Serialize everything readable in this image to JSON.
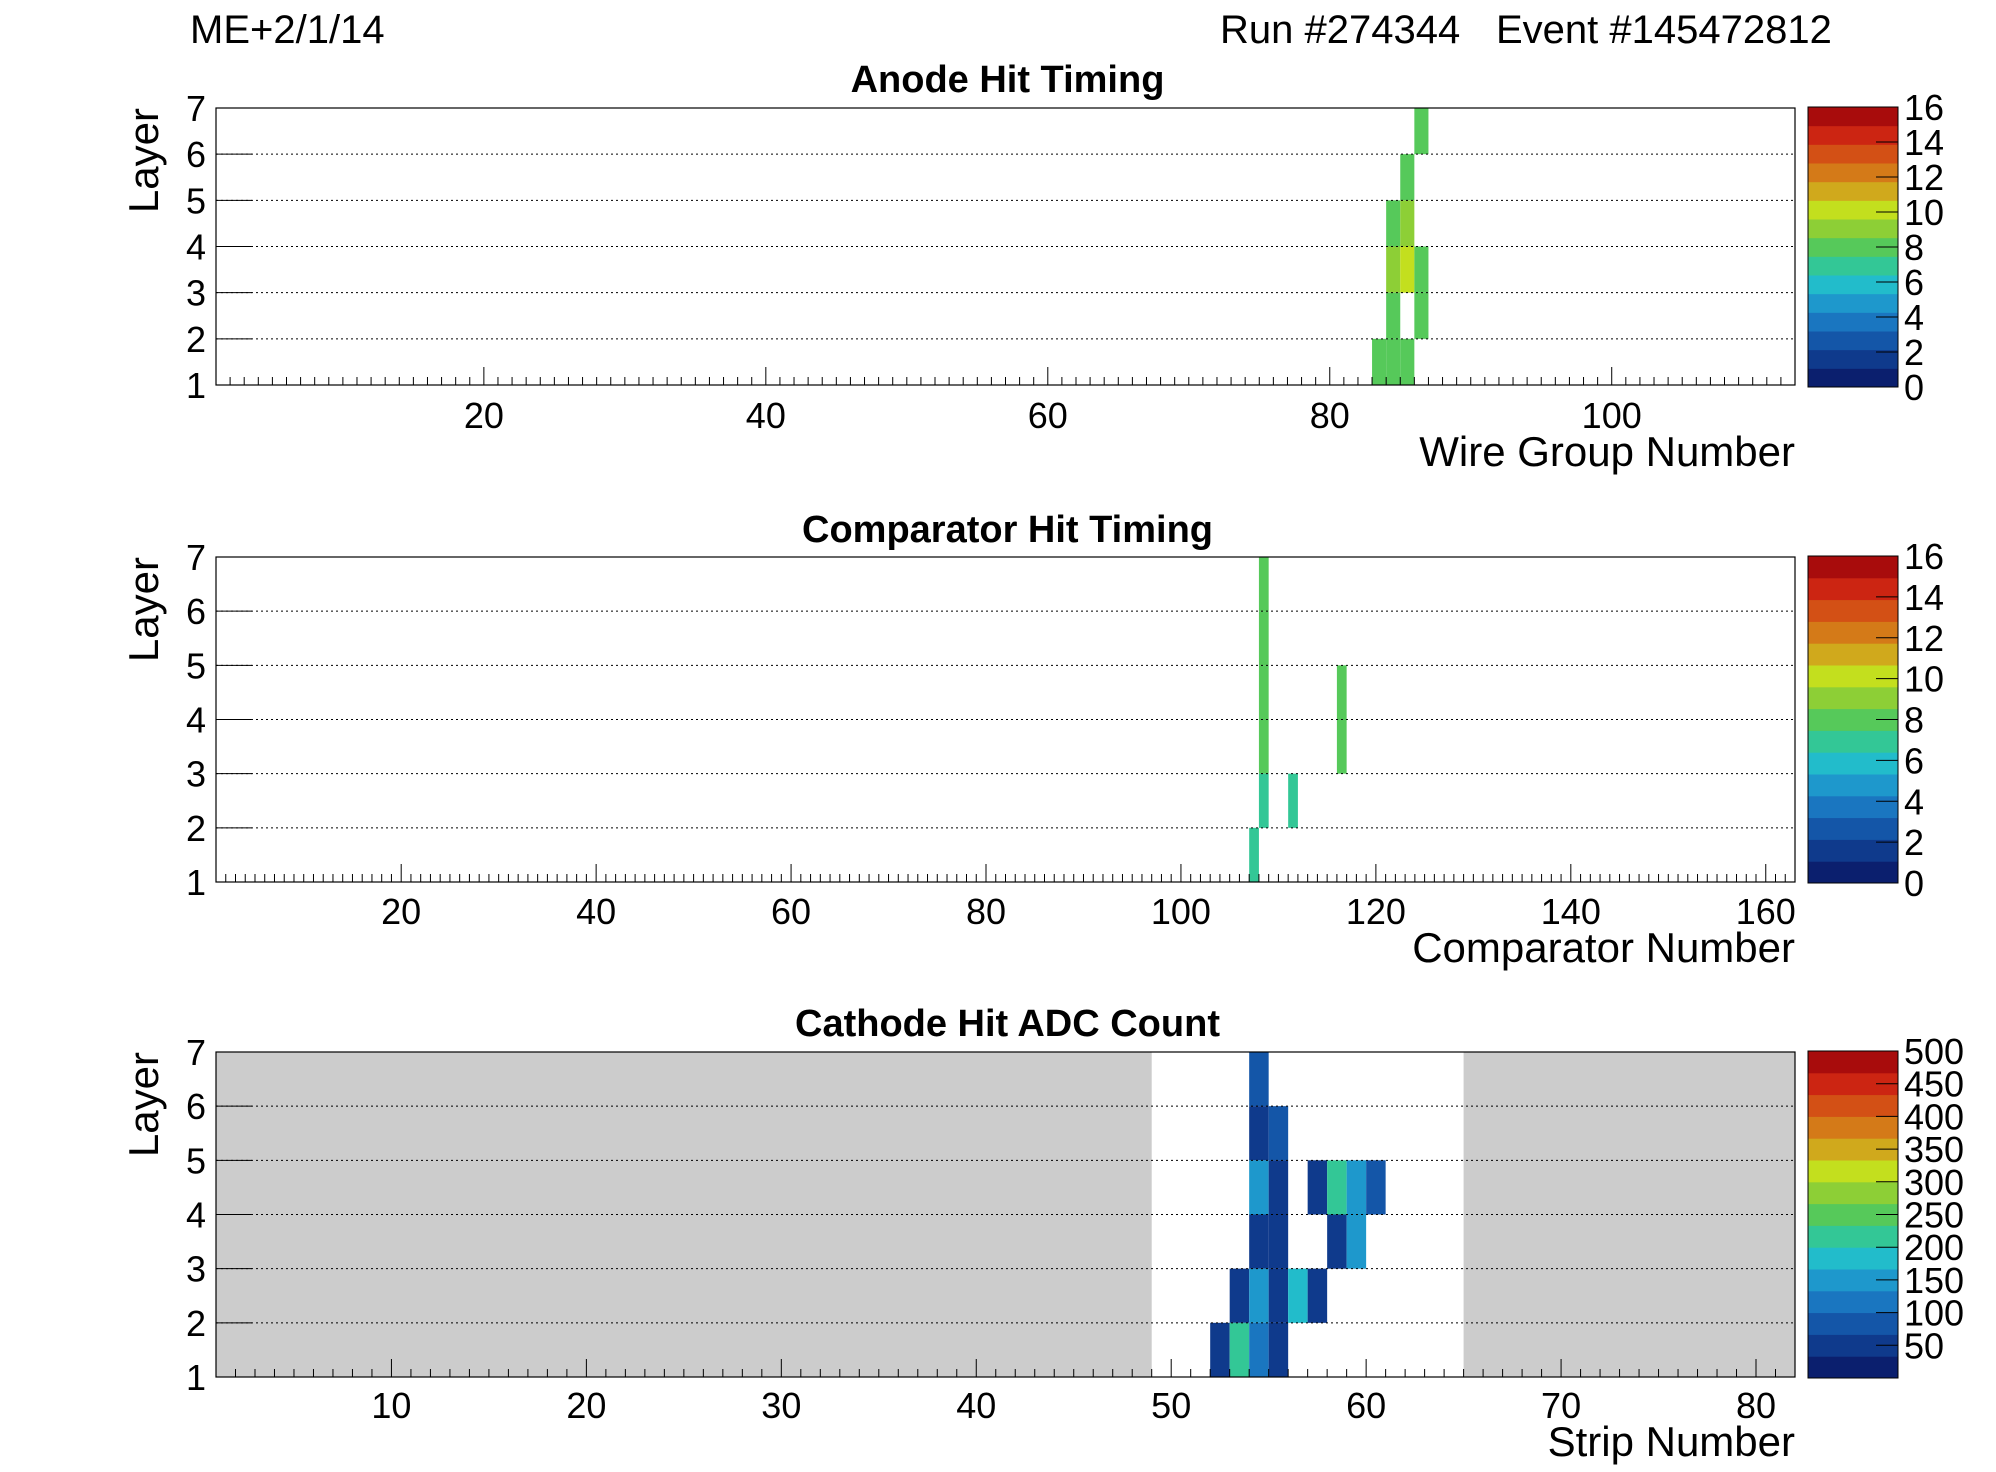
{
  "header": {
    "chamber": "ME+2/1/14",
    "run": "Run #274344",
    "event": "Event #145472812"
  },
  "colors": {
    "undefined_fill": "#cccccc",
    "plot_bg": "#ffffff",
    "palette": [
      "#0b1f6e",
      "#0f3a8c",
      "#1456a8",
      "#1a76c0",
      "#1e98cc",
      "#22bccb",
      "#33c796",
      "#56c95a",
      "#8dcf36",
      "#c3df1e",
      "#d0a91c",
      "#d47a18",
      "#d35015",
      "#cc2512",
      "#a80c0c"
    ]
  },
  "chart_data": [
    {
      "id": "anode",
      "type": "heatmap",
      "title": "Anode Hit Timing",
      "xlabel": "Wire Group Number",
      "ylabel": "Layer",
      "xlim": [
        1,
        113
      ],
      "ylim": [
        1,
        7
      ],
      "xticks": [
        20,
        40,
        60,
        80,
        100
      ],
      "yticks": [
        1,
        2,
        3,
        4,
        5,
        6,
        7
      ],
      "zlim": [
        0,
        16
      ],
      "zticks": [
        0,
        2,
        4,
        6,
        8,
        10,
        12,
        14,
        16
      ],
      "cells": [
        {
          "x": 86,
          "layer": 6,
          "value": 8.5
        },
        {
          "x": 85,
          "layer": 5,
          "value": 8.5
        },
        {
          "x": 84,
          "layer": 4,
          "value": 8.5
        },
        {
          "x": 85,
          "layer": 4,
          "value": 9.5
        },
        {
          "x": 84,
          "layer": 3,
          "value": 9.5
        },
        {
          "x": 85,
          "layer": 3,
          "value": 10.5
        },
        {
          "x": 86,
          "layer": 3,
          "value": 8.5
        },
        {
          "x": 84,
          "layer": 2,
          "value": 8.5
        },
        {
          "x": 86,
          "layer": 2,
          "value": 7.5
        },
        {
          "x": 83,
          "layer": 1,
          "value": 8.5
        },
        {
          "x": 84,
          "layer": 1,
          "value": 8.5
        },
        {
          "x": 85,
          "layer": 1,
          "value": 8.5
        }
      ],
      "defined_ranges": []
    },
    {
      "id": "comparator",
      "type": "heatmap",
      "title": "Comparator Hit Timing",
      "xlabel": "Comparator Number",
      "ylabel": "Layer",
      "xlim": [
        1,
        163
      ],
      "ylim": [
        1,
        7
      ],
      "xticks": [
        20,
        40,
        60,
        80,
        100,
        120,
        140,
        160
      ],
      "yticks": [
        1,
        2,
        3,
        4,
        5,
        6,
        7
      ],
      "zlim": [
        0,
        16
      ],
      "zticks": [
        0,
        2,
        4,
        6,
        8,
        10,
        12,
        14,
        16
      ],
      "cells": [
        {
          "x": 108,
          "layer": 6,
          "value": 8.5
        },
        {
          "x": 108,
          "layer": 5,
          "value": 8.5
        },
        {
          "x": 108,
          "layer": 4,
          "value": 7.5
        },
        {
          "x": 116,
          "layer": 4,
          "value": 7.5
        },
        {
          "x": 108,
          "layer": 3,
          "value": 8.5
        },
        {
          "x": 116,
          "layer": 3,
          "value": 7.5
        },
        {
          "x": 108,
          "layer": 2,
          "value": 6.5
        },
        {
          "x": 111,
          "layer": 2,
          "value": 6.5
        },
        {
          "x": 107,
          "layer": 1,
          "value": 6.5
        }
      ],
      "defined_ranges": []
    },
    {
      "id": "cathode",
      "type": "heatmap",
      "title": "Cathode Hit ADC Count",
      "xlabel": "Strip Number",
      "ylabel": "Layer",
      "xlim": [
        1,
        82
      ],
      "ylim": [
        1,
        7
      ],
      "xticks": [
        10,
        20,
        30,
        40,
        50,
        60,
        70,
        80
      ],
      "yticks": [
        1,
        2,
        3,
        4,
        5,
        6,
        7
      ],
      "zlim": [
        0,
        500
      ],
      "zticks": [
        50,
        100,
        150,
        200,
        250,
        300,
        350,
        400,
        450,
        500
      ],
      "defined_ranges": [
        [
          49,
          65
        ]
      ],
      "cells": [
        {
          "x": 54,
          "layer": 6,
          "value": 70
        },
        {
          "x": 54,
          "layer": 5,
          "value": 45
        },
        {
          "x": 55,
          "layer": 5,
          "value": 90
        },
        {
          "x": 54,
          "layer": 4,
          "value": 150
        },
        {
          "x": 55,
          "layer": 4,
          "value": 40
        },
        {
          "x": 57,
          "layer": 4,
          "value": 40
        },
        {
          "x": 58,
          "layer": 4,
          "value": 220
        },
        {
          "x": 59,
          "layer": 4,
          "value": 160
        },
        {
          "x": 60,
          "layer": 4,
          "value": 70
        },
        {
          "x": 54,
          "layer": 3,
          "value": 40
        },
        {
          "x": 55,
          "layer": 3,
          "value": 50
        },
        {
          "x": 58,
          "layer": 3,
          "value": 50
        },
        {
          "x": 59,
          "layer": 3,
          "value": 140
        },
        {
          "x": 53,
          "layer": 2,
          "value": 40
        },
        {
          "x": 54,
          "layer": 2,
          "value": 160
        },
        {
          "x": 55,
          "layer": 2,
          "value": 60
        },
        {
          "x": 56,
          "layer": 2,
          "value": 170
        },
        {
          "x": 57,
          "layer": 2,
          "value": 40
        },
        {
          "x": 52,
          "layer": 1,
          "value": 40
        },
        {
          "x": 53,
          "layer": 1,
          "value": 230
        },
        {
          "x": 54,
          "layer": 1,
          "value": 110
        },
        {
          "x": 55,
          "layer": 1,
          "value": 40
        }
      ]
    }
  ]
}
